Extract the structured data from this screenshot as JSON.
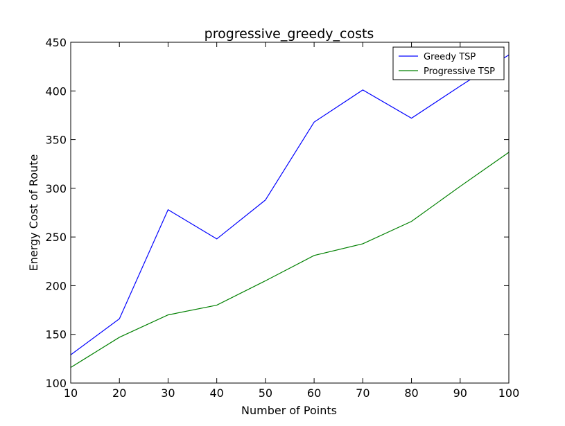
{
  "chart_data": {
    "type": "line",
    "title": "progressive_greedy_costs",
    "xlabel": "Number of Points",
    "ylabel": "Energy Cost of Route",
    "x": [
      10,
      20,
      30,
      40,
      50,
      60,
      70,
      80,
      90,
      100
    ],
    "xlim": [
      10,
      100
    ],
    "ylim": [
      100,
      450
    ],
    "xticks": [
      "10",
      "20",
      "30",
      "40",
      "50",
      "60",
      "70",
      "80",
      "90",
      "100"
    ],
    "yticks": [
      "100",
      "150",
      "200",
      "250",
      "300",
      "350",
      "400",
      "450"
    ],
    "grid": false,
    "legend_position": "top-right",
    "series": [
      {
        "name": "Greedy TSP",
        "color": "#0000ff",
        "values": [
          129,
          166,
          278,
          248,
          288,
          368,
          401,
          372,
          405,
          437
        ]
      },
      {
        "name": "Progressive TSP",
        "color": "#008000",
        "values": [
          116,
          147,
          170,
          180,
          205,
          231,
          243,
          266,
          302,
          337
        ]
      }
    ]
  }
}
